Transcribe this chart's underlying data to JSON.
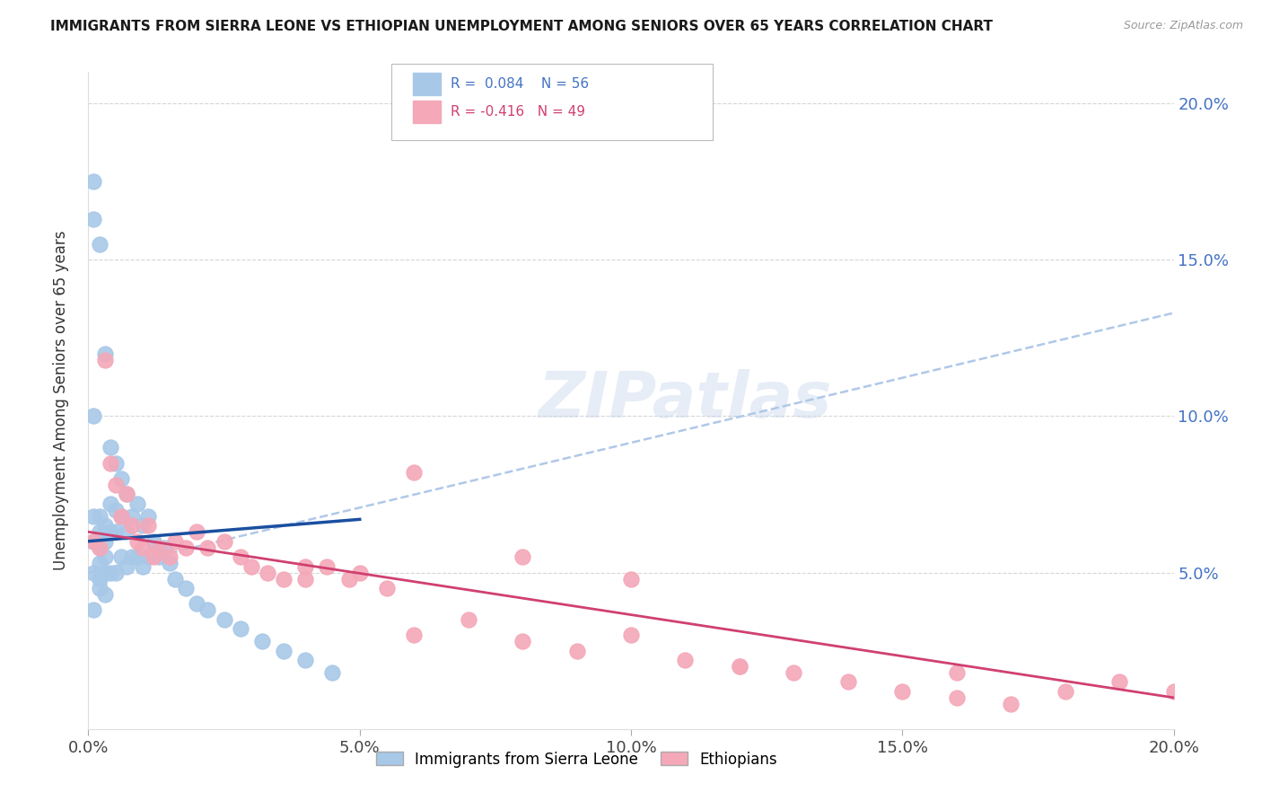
{
  "title": "IMMIGRANTS FROM SIERRA LEONE VS ETHIOPIAN UNEMPLOYMENT AMONG SENIORS OVER 65 YEARS CORRELATION CHART",
  "source": "Source: ZipAtlas.com",
  "ylabel": "Unemployment Among Seniors over 65 years",
  "xlim": [
    0.0,
    0.2
  ],
  "ylim": [
    0.0,
    0.21
  ],
  "right_yticks": [
    0.05,
    0.1,
    0.15,
    0.2
  ],
  "right_ytick_labels": [
    "5.0%",
    "10.0%",
    "15.0%",
    "20.0%"
  ],
  "xticks": [
    0.0,
    0.05,
    0.1,
    0.15,
    0.2
  ],
  "xtick_labels": [
    "0.0%",
    "5.0%",
    "10.0%",
    "15.0%",
    "20.0%"
  ],
  "legend_labels": [
    "Immigrants from Sierra Leone",
    "Ethiopians"
  ],
  "sierra_leone_color": "#a8c8e8",
  "ethiopian_color": "#f4a8b8",
  "sierra_leone_line_color": "#1a4fa0",
  "ethiopian_line_color": "#d04070",
  "dashed_line_color": "#b0c8e8",
  "R_sierra": 0.084,
  "N_sierra": 56,
  "R_ethiopian": -0.416,
  "N_ethiopian": 49,
  "sl_x": [
    0.001,
    0.001,
    0.001,
    0.001,
    0.001,
    0.002,
    0.002,
    0.002,
    0.002,
    0.002,
    0.003,
    0.003,
    0.003,
    0.003,
    0.004,
    0.004,
    0.004,
    0.004,
    0.005,
    0.005,
    0.005,
    0.005,
    0.006,
    0.006,
    0.006,
    0.007,
    0.007,
    0.007,
    0.008,
    0.008,
    0.009,
    0.009,
    0.01,
    0.01,
    0.011,
    0.011,
    0.012,
    0.013,
    0.014,
    0.015,
    0.016,
    0.018,
    0.02,
    0.022,
    0.025,
    0.028,
    0.032,
    0.036,
    0.04,
    0.045,
    0.001,
    0.002,
    0.003,
    0.002,
    0.003,
    0.001
  ],
  "sl_y": [
    0.175,
    0.163,
    0.1,
    0.068,
    0.06,
    0.155,
    0.068,
    0.063,
    0.058,
    0.053,
    0.12,
    0.065,
    0.06,
    0.05,
    0.09,
    0.072,
    0.063,
    0.05,
    0.085,
    0.07,
    0.063,
    0.05,
    0.08,
    0.068,
    0.055,
    0.075,
    0.063,
    0.052,
    0.068,
    0.055,
    0.072,
    0.055,
    0.065,
    0.052,
    0.068,
    0.055,
    0.06,
    0.055,
    0.058,
    0.053,
    0.048,
    0.045,
    0.04,
    0.038,
    0.035,
    0.032,
    0.028,
    0.025,
    0.022,
    0.018,
    0.05,
    0.048,
    0.055,
    0.045,
    0.043,
    0.038
  ],
  "eth_x": [
    0.001,
    0.002,
    0.003,
    0.004,
    0.005,
    0.006,
    0.007,
    0.008,
    0.009,
    0.01,
    0.011,
    0.012,
    0.013,
    0.015,
    0.016,
    0.018,
    0.02,
    0.022,
    0.025,
    0.028,
    0.03,
    0.033,
    0.036,
    0.04,
    0.044,
    0.048,
    0.05,
    0.055,
    0.06,
    0.07,
    0.08,
    0.09,
    0.1,
    0.11,
    0.12,
    0.13,
    0.14,
    0.15,
    0.16,
    0.17,
    0.18,
    0.19,
    0.2,
    0.04,
    0.06,
    0.08,
    0.1,
    0.12,
    0.16
  ],
  "eth_y": [
    0.06,
    0.058,
    0.118,
    0.085,
    0.078,
    0.068,
    0.075,
    0.065,
    0.06,
    0.058,
    0.065,
    0.055,
    0.058,
    0.055,
    0.06,
    0.058,
    0.063,
    0.058,
    0.06,
    0.055,
    0.052,
    0.05,
    0.048,
    0.048,
    0.052,
    0.048,
    0.05,
    0.045,
    0.03,
    0.035,
    0.028,
    0.025,
    0.03,
    0.022,
    0.02,
    0.018,
    0.015,
    0.012,
    0.01,
    0.008,
    0.012,
    0.015,
    0.012,
    0.052,
    0.082,
    0.055,
    0.048,
    0.02,
    0.018
  ],
  "sl_line_x": [
    0.0,
    0.05
  ],
  "sl_line_y": [
    0.06,
    0.067
  ],
  "eth_line_x": [
    0.0,
    0.2
  ],
  "eth_line_y": [
    0.063,
    0.01
  ],
  "dash_line_x": [
    0.0,
    0.2
  ],
  "dash_line_y": [
    0.05,
    0.133
  ]
}
